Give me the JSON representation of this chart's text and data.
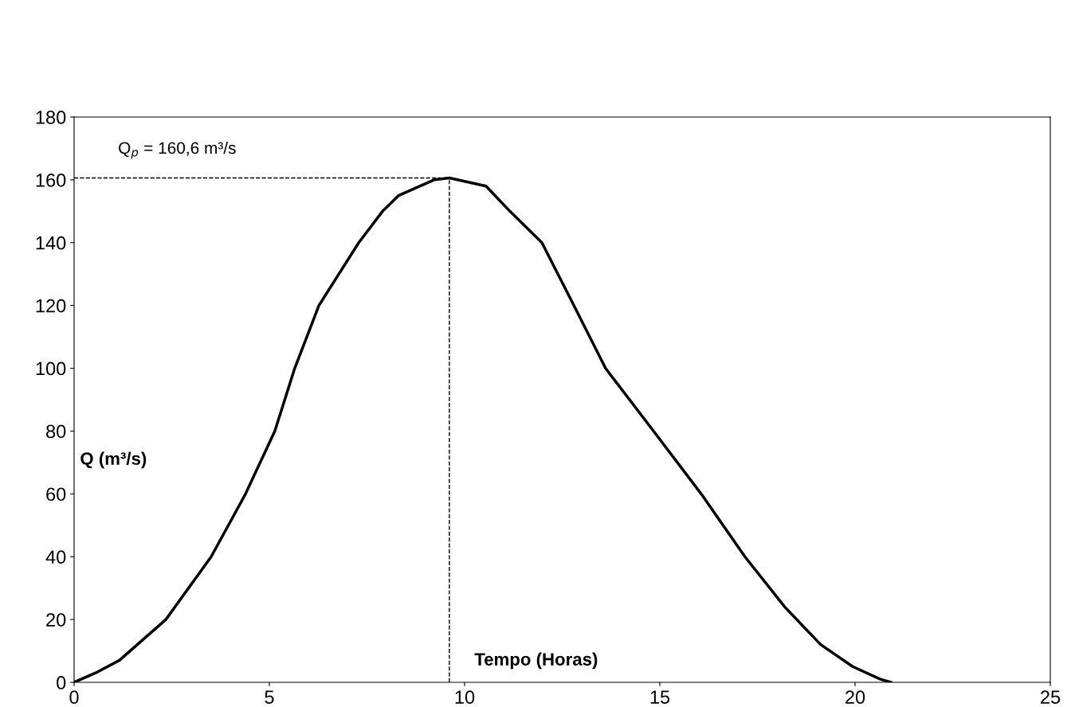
{
  "chart_data": {
    "type": "line",
    "xlabel": "Tempo (Horas)",
    "ylabel": "Q (m³/s)",
    "annotations": [
      "Q$_{p}$ = 160,6 m³/s"
    ],
    "series": [
      {
        "color": "#000000",
        "x": [
          0,
          0.55,
          1.16,
          2.35,
          3.51,
          4.39,
          5.14,
          5.65,
          6.27,
          7.29,
          7.9,
          8.31,
          9.22,
          9.61,
          10.55,
          11.16,
          11.98,
          12.8,
          13.61,
          14.84,
          16.06,
          17.18,
          18.2,
          19.12,
          19.94,
          20.65,
          20.92
        ],
        "values": [
          0,
          3,
          7,
          20,
          40,
          60,
          80,
          100,
          120,
          140,
          150,
          155,
          160,
          160.6,
          158,
          150,
          140,
          120,
          100,
          80,
          60,
          40,
          24,
          12,
          5,
          1,
          0
        ]
      }
    ],
    "ref_lines": [
      {
        "axis": "x",
        "value": 9.61,
        "line_style": "dashed",
        "color": "#000000"
      },
      {
        "axis": "y",
        "value": 160.6,
        "line_style": "dashed",
        "color": "#000000"
      }
    ],
    "xlim": [
      0,
      25
    ],
    "xticks": [
      0,
      5,
      10,
      15,
      20,
      25
    ],
    "ylim": [
      0,
      180
    ],
    "yticks": [
      0,
      20,
      40,
      60,
      80,
      100,
      120,
      140,
      160,
      180
    ],
    "grid": false,
    "legend": false,
    "marker": "none",
    "line_style": "solid"
  }
}
